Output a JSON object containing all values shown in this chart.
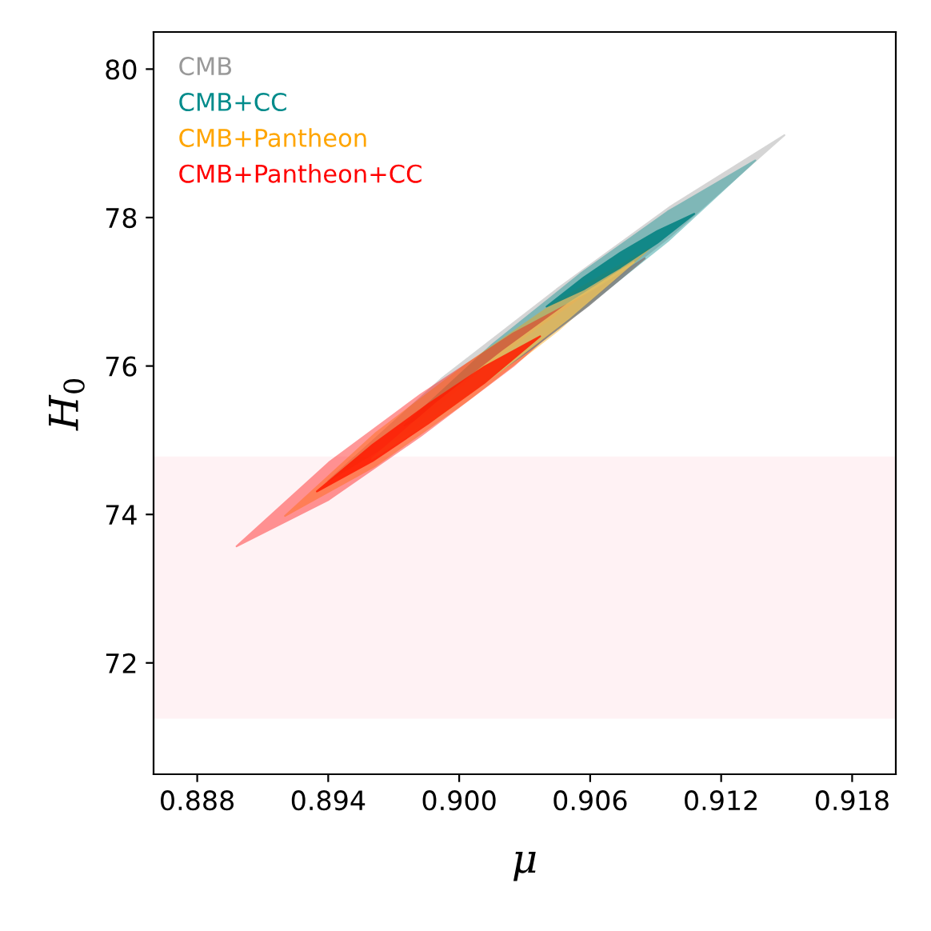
{
  "chart_data": {
    "type": "area",
    "xlabel": "μ",
    "ylabel": "H$_{0}$",
    "xlim": [
      0.886,
      0.92
    ],
    "ylim": [
      70.5,
      80.5
    ],
    "xticks": [
      {
        "value": 0.888,
        "label": "0.888"
      },
      {
        "value": 0.894,
        "label": "0.894"
      },
      {
        "value": 0.9,
        "label": "0.900"
      },
      {
        "value": 0.906,
        "label": "0.906"
      },
      {
        "value": 0.912,
        "label": "0.912"
      },
      {
        "value": 0.918,
        "label": "0.918"
      }
    ],
    "yticks": [
      72,
      74,
      76,
      78,
      80
    ],
    "grid": false,
    "legend": "top left",
    "bands": [
      {
        "axis": "y",
        "from": 71.25,
        "to": 74.78,
        "color": "#fff2f4"
      }
    ],
    "series": [
      {
        "name": "CMB",
        "color": "#999999",
        "x": [
          0.894,
          0.89923,
          0.90445,
          0.90968,
          0.9149,
          0.90968,
          0.90445,
          0.89923,
          0.894
        ],
        "values": [
          74.45,
          75.84,
          77.03,
          78.15,
          79.11,
          77.75,
          76.53,
          75.4,
          74.45
        ]
      },
      {
        "name": "CMB+CC",
        "color": "#008b8b",
        "x": [
          0.8975,
          0.90152,
          0.90554,
          0.90955,
          0.91357,
          0.90955,
          0.90554,
          0.90152,
          0.8975
        ],
        "values": [
          75.2,
          76.29,
          77.24,
          78.08,
          78.77,
          77.68,
          76.74,
          75.89,
          75.2
        ]
      },
      {
        "name": "CMB+Pantheon",
        "color": "#ffa500",
        "x": [
          0.89202,
          0.89619,
          0.90036,
          0.90453,
          0.9087,
          0.90453,
          0.90036,
          0.89619,
          0.89202
        ],
        "values": [
          73.98,
          75.1,
          76.03,
          76.88,
          77.58,
          76.48,
          75.53,
          74.66,
          73.98
        ]
      },
      {
        "name": "CMB+Pantheon+CC",
        "color": "#ff0000",
        "x": [
          0.8898,
          0.89403,
          0.89825,
          0.90248,
          0.9067,
          0.90248,
          0.89825,
          0.89403,
          0.8898
        ],
        "values": [
          73.57,
          74.7,
          75.62,
          76.44,
          77.1,
          76.0,
          75.06,
          74.2,
          73.57
        ]
      },
      {
        "color": "#808080",
        "x": [
          0.8981,
          0.9007,
          0.9033,
          0.9059,
          0.9085,
          0.9059,
          0.9033,
          0.9007,
          0.8981
        ],
        "values": [
          75.21,
          75.85,
          76.43,
          76.97,
          77.45,
          76.81,
          76.23,
          75.69,
          75.21
        ]
      },
      {
        "color": "#008080",
        "x": [
          0.904,
          0.90569,
          0.90739,
          0.90908,
          0.91077,
          0.90908,
          0.90739,
          0.90569,
          0.904
        ],
        "values": [
          76.8,
          77.19,
          77.53,
          77.82,
          78.05,
          77.66,
          77.33,
          77.03,
          76.8
        ]
      },
      {
        "color": "#e6c060",
        "x": [
          0.896,
          0.899,
          0.902,
          0.905,
          0.908,
          0.905,
          0.902,
          0.899,
          0.896
        ],
        "values": [
          74.75,
          75.51,
          76.2,
          76.84,
          77.4,
          76.64,
          75.96,
          75.31,
          74.75
        ]
      },
      {
        "color": "#ff1a00",
        "x": [
          0.89348,
          0.89604,
          0.8986,
          0.90115,
          0.90371,
          0.90115,
          0.8986,
          0.89604,
          0.89348
        ],
        "values": [
          74.31,
          74.94,
          75.49,
          75.99,
          76.4,
          75.77,
          75.23,
          74.72,
          74.31
        ]
      }
    ]
  }
}
